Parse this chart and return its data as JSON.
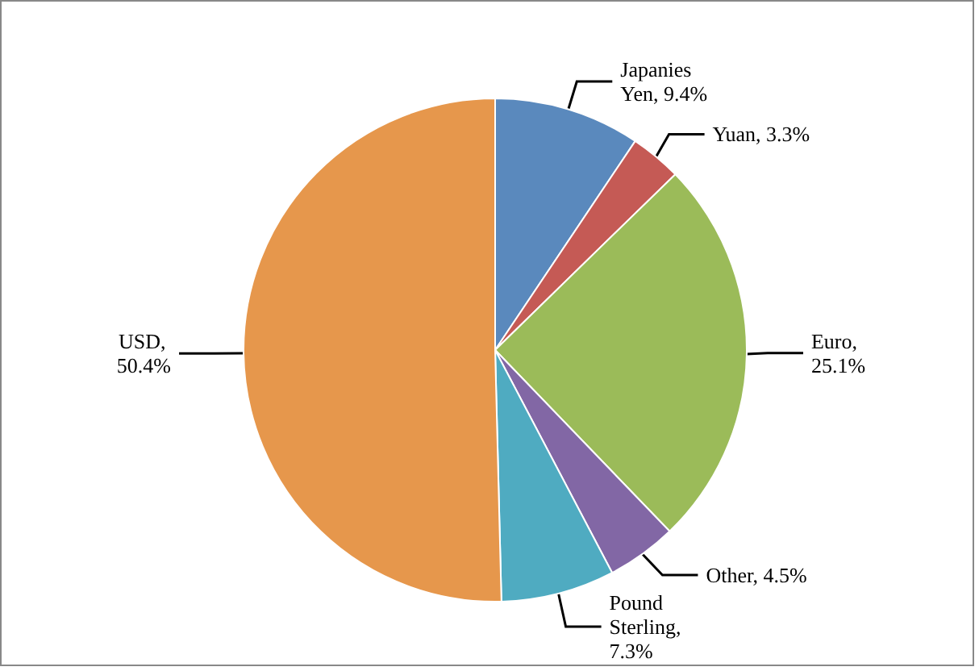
{
  "chart_data": {
    "type": "pie",
    "categories": [
      "Japanies Yen",
      "Yuan",
      "Euro",
      "Other",
      "Pound Sterling",
      "USD"
    ],
    "values": [
      9.4,
      3.3,
      25.1,
      4.5,
      7.3,
      50.4
    ],
    "value_labels": [
      ", 9.4%",
      ", 3.3%",
      ", 25.1%",
      ", 4.5%",
      ", 7.3%",
      ", 50.4%"
    ],
    "colors": [
      "#5a89bd",
      "#c55a55",
      "#9bbb59",
      "#8267a5",
      "#4fabc1",
      "#e6974c"
    ],
    "legend": false
  }
}
